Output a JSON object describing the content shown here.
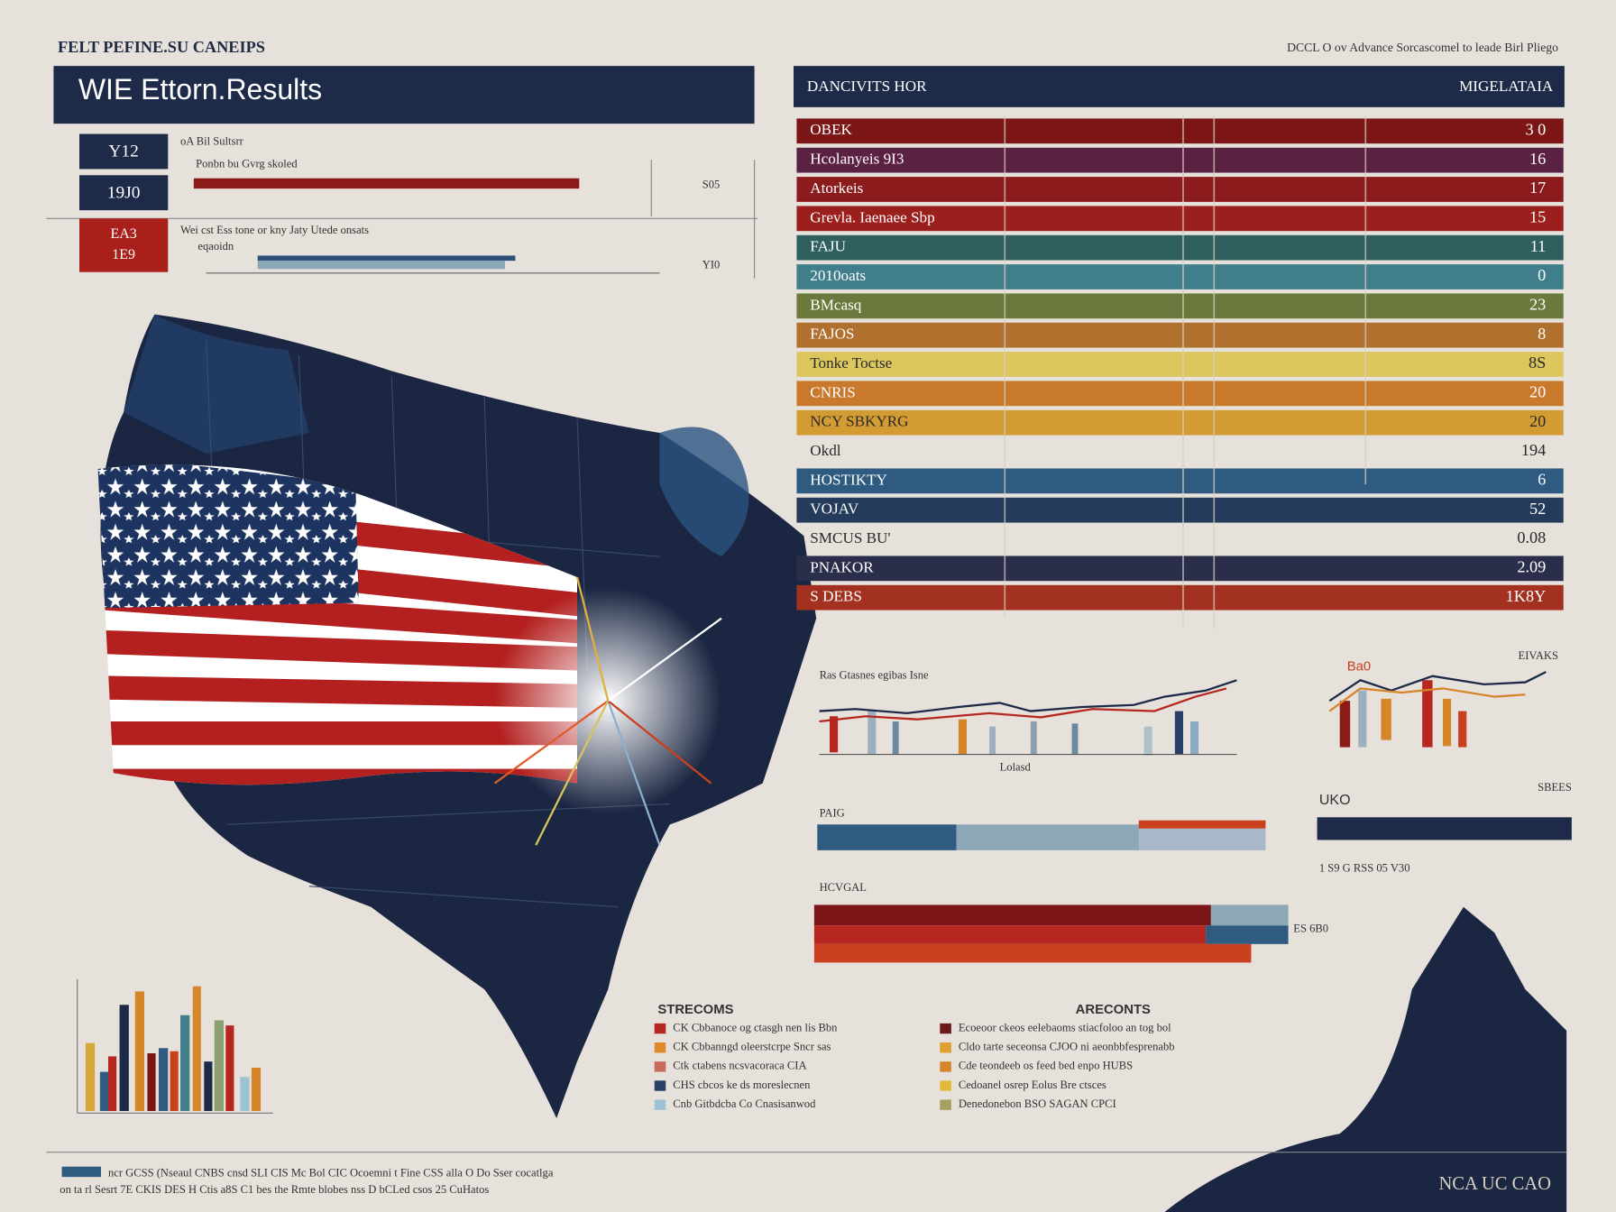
{
  "header": {
    "kicker": "FELT PEFINE.SU CANEIPS",
    "note": "DCCL O ov Advance Sorcascomel to leade Birl Pliego",
    "title": "WIE Ettorn.Results"
  },
  "summary": {
    "badges": [
      "Y12",
      "19J0",
      "EA3",
      "1E9"
    ],
    "labels": [
      "oA Bil Sultsrr",
      "Ponbn bu Gvrg skoled",
      "Wei cst Ess tone or kny Jaty Utede onsats",
      "eqaoidn"
    ],
    "side_values": [
      "S05",
      "YI0"
    ]
  },
  "rankings": {
    "header_left": "DANCIVITS HOR",
    "header_right": "MIGELATAIA",
    "rows": [
      {
        "label": "OBEK",
        "value": "3 0",
        "color": "#7b1516"
      },
      {
        "label": "Hcolanyeis 9I3",
        "value": "16",
        "color": "#5b2142"
      },
      {
        "label": "Atorkeis",
        "value": "17",
        "color": "#8c1b1d"
      },
      {
        "label": "Grevla. Iaenaee Sbp",
        "value": "15",
        "color": "#9b1f1d"
      },
      {
        "label": "FAJU",
        "value": "11",
        "color": "#2f5f5f"
      },
      {
        "label": "2010oats",
        "value": "0",
        "color": "#3f7e8a"
      },
      {
        "label": "BMcasq",
        "value": "23",
        "color": "#6b7a3c"
      },
      {
        "label": "FAJOS",
        "value": "8",
        "color": "#b0712f"
      },
      {
        "label": "Tonke Toctse",
        "value": "8S",
        "color": "#dcc75e"
      },
      {
        "label": "CNRIS",
        "value": "20",
        "color": "#c9792b"
      },
      {
        "label": "NCY SBKYRG",
        "value": "20",
        "color": "#d39c33"
      },
      {
        "label": "Okdl",
        "value": "194"
      },
      {
        "label": "HOSTIKTY",
        "value": "6",
        "color": "#2f5b81"
      },
      {
        "label": "VOJAV",
        "value": "52",
        "color": "#243b5b"
      },
      {
        "label": "SMCUS BU'",
        "value": "0.08"
      },
      {
        "label": "PNAKOR",
        "value": "2.09",
        "color": "#2b2e4b"
      },
      {
        "label": "S DEBS",
        "value": "1K8Y",
        "color": "#a2311f"
      }
    ]
  },
  "panels": {
    "line_caption": "Ras Gtasnes egibas Isne",
    "line_axis": "Lolasd",
    "right_tag": "Ba0",
    "right_caption": "EIVAKS",
    "bar_a": "PAIG",
    "bar_b": "HCVGAL",
    "bar_c": "UKO",
    "bar_c_note": "SBEES",
    "bar_c_axis": "1 S9 G RSS 05 V30",
    "bar_d_note": "ES 6B0"
  },
  "legends": [
    {
      "title": "STRECOMS",
      "items": [
        {
          "text": "CK Cbbanoce og ctasgh nen lis Bbn",
          "color": "#b5271f"
        },
        {
          "text": "CK Cbbanngd oleerstcrpe Sncr sas",
          "color": "#e08a2c"
        },
        {
          "text": "Ctk ctabens ncsvacoraca CIA",
          "color": "#c96a5c"
        },
        {
          "text": "CHS cbcos ke ds moreslecnen",
          "color": "#2b3e66"
        },
        {
          "text": "Cnb Gitbdcba Co Cnasisanwod",
          "color": "#9cc3d4"
        }
      ]
    },
    {
      "title": "ARECONTS",
      "items": [
        {
          "text": "Ecoeoor ckeos eelebaoms stiacfoloo an tog bol",
          "color": "#6b1a1c"
        },
        {
          "text": "Cldo tarte seceonsa CJOO ni aeonbbfesprenabb",
          "color": "#e0a030"
        },
        {
          "text": "Cde teondeeb os feed bed enpo HUBS",
          "color": "#d6862a"
        },
        {
          "text": "Cedoanel osrep Eolus Bre ctsces",
          "color": "#e3b93c"
        },
        {
          "text": "Denedonebon BSO SAGAN CPCI",
          "color": "#a5a060"
        }
      ]
    }
  ],
  "footer": {
    "lines": [
      "ncr GCSS (Nseaul CNBS cnsd SLI CIS Mc Bol CIC Ocoemni t Fine CSS alla O Do Sser cocatlga",
      "on ta rl Sesrt 7E CKIS DES H Ctis a8S C1 bes the Rmte blobes nss D bCLed csos 25 CuHatos"
    ],
    "mark": "NCA UC CAO"
  }
}
